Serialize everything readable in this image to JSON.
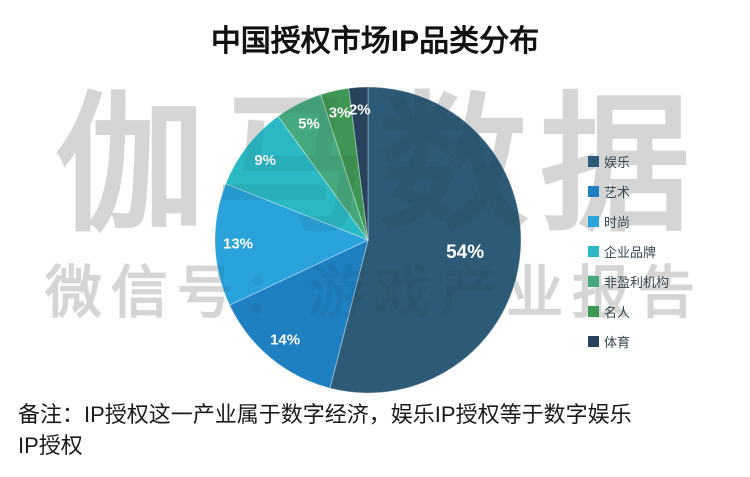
{
  "title": "中国授权市场IP品类分布",
  "note": "备注：IP授权这一产业属于数字经济，娱乐IP授权等于数字娱乐IP授权",
  "watermark": {
    "line1": "伽马数据",
    "line2": "微信号：游戏产业报告"
  },
  "colors": {
    "background": "#ffffff",
    "title_text": "#111111",
    "note_text": "#1a1a1a",
    "legend_text": "#37474f",
    "watermark_gray": "#e2e2e2",
    "pie_label_text": "#ffffff"
  },
  "chart_data": {
    "type": "pie",
    "title": "中国授权市场IP品类分布",
    "start_angle_deg": 0,
    "direction": "clockwise",
    "legend_position": "right",
    "unit": "%",
    "categories": [
      "娱乐",
      "艺术",
      "时尚",
      "企业品牌",
      "非盈利机构",
      "名人",
      "体育"
    ],
    "values": [
      54,
      14,
      13,
      9,
      5,
      3,
      2
    ],
    "display_labels": [
      "54%",
      "14%",
      "13%",
      "9%",
      "5%",
      "3%",
      "2%"
    ],
    "slice_colors": [
      "#2d5b77",
      "#1f80c1",
      "#2aa2dc",
      "#2ab9c4",
      "#46a97d",
      "#3f9755",
      "#26425d"
    ]
  }
}
